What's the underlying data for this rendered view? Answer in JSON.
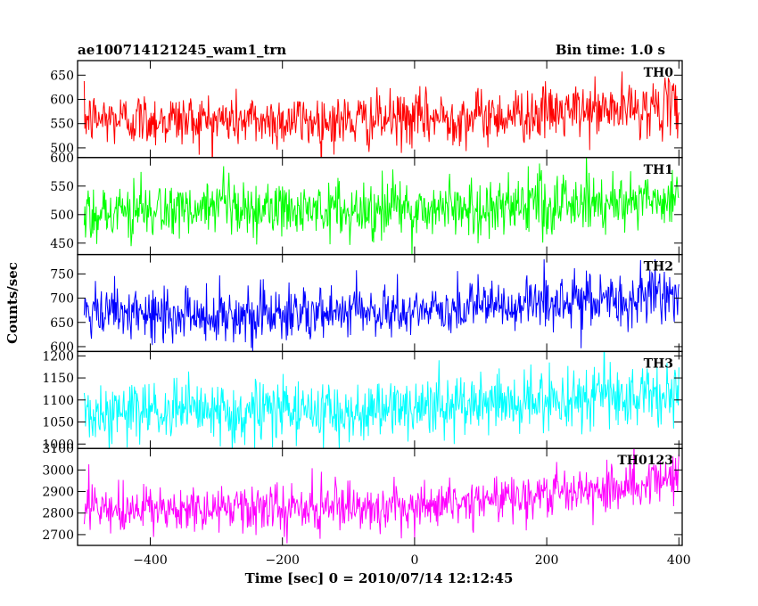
{
  "header": {
    "title": "ae100714121245_wam1_trn",
    "bin_time": "Bin time: 1.0 s"
  },
  "chart_data": {
    "type": "line",
    "xlabel": "Time [sec] 0 = 2010/07/14 12:12:45",
    "ylabel": "Counts/sec",
    "xlim": [
      -510,
      405
    ],
    "x_ticks": [
      -400,
      -200,
      0,
      200,
      400
    ],
    "x_tick_labels": [
      "−400",
      "−200",
      "0",
      "200",
      "400"
    ],
    "x_range_data": [
      -500,
      400
    ],
    "bin_time_s": 1.0,
    "panels": [
      {
        "label": "TH0",
        "color": "#ff0000",
        "ylim": [
          480,
          680
        ],
        "yticks": [
          500,
          550,
          600,
          650
        ],
        "trend": [
          [
            -500,
            560
          ],
          [
            -100,
            555
          ],
          [
            100,
            565
          ],
          [
            400,
            585
          ]
        ],
        "noise": 28
      },
      {
        "label": "TH1",
        "color": "#00ff00",
        "ylim": [
          430,
          600
        ],
        "yticks": [
          450,
          500,
          550,
          600
        ],
        "trend": [
          [
            -500,
            505
          ],
          [
            -100,
            508
          ],
          [
            100,
            512
          ],
          [
            400,
            530
          ]
        ],
        "noise": 26
      },
      {
        "label": "TH2",
        "color": "#0000ff",
        "ylim": [
          590,
          790
        ],
        "yticks": [
          600,
          650,
          700,
          750
        ],
        "trend": [
          [
            -500,
            665
          ],
          [
            -100,
            668
          ],
          [
            100,
            680
          ],
          [
            400,
            705
          ]
        ],
        "noise": 28
      },
      {
        "label": "TH3",
        "color": "#00ffff",
        "ylim": [
          990,
          1210
        ],
        "yticks": [
          1000,
          1050,
          1100,
          1150,
          1200
        ],
        "trend": [
          [
            -500,
            1070
          ],
          [
            -100,
            1075
          ],
          [
            100,
            1090
          ],
          [
            400,
            1115
          ]
        ],
        "noise": 35
      },
      {
        "label": "TH0123",
        "color": "#ff00ff",
        "ylim": [
          2650,
          3100
        ],
        "yticks": [
          2700,
          2800,
          2900,
          3000,
          3100
        ],
        "trend": [
          [
            -500,
            2810
          ],
          [
            -100,
            2820
          ],
          [
            100,
            2860
          ],
          [
            400,
            2960
          ]
        ],
        "noise": 55
      }
    ]
  }
}
